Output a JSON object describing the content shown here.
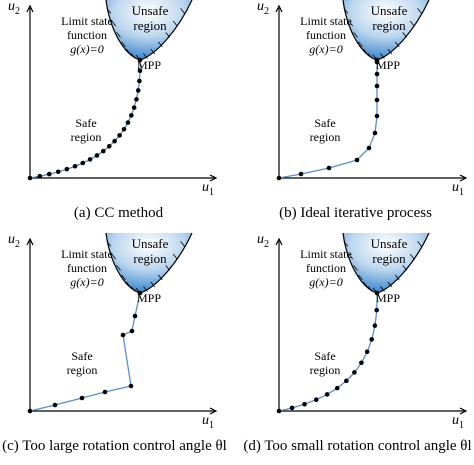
{
  "panels": [
    {
      "id": "a",
      "caption": "(a) CC method",
      "u2": "u",
      "u2_sub": "2",
      "u1": "u",
      "u1_sub": "1",
      "unsafe": [
        "Unsafe",
        "region"
      ],
      "limit": [
        "Limit state",
        "function",
        "g(x)=0"
      ],
      "mpp": "MPP",
      "safe": [
        "Safe",
        "region"
      ],
      "path_style": "curve",
      "points_count": 22
    },
    {
      "id": "b",
      "caption": "(b) Ideal iterative process",
      "u2": "u",
      "u2_sub": "2",
      "u1": "u",
      "u1_sub": "1",
      "unsafe": [
        "Unsafe",
        "region"
      ],
      "limit": [
        "Limit state",
        "function",
        "g(x)=0"
      ],
      "mpp": "MPP",
      "safe": [
        "Safe",
        "region"
      ],
      "path_style": "ideal",
      "points_count": 12
    },
    {
      "id": "c",
      "caption": "(c) Too large rotation control angle θl",
      "u2": "u",
      "u2_sub": "2",
      "u1": "u",
      "u1_sub": "1",
      "unsafe": [
        "Unsafe",
        "region"
      ],
      "limit": [
        "Limit state",
        "function",
        "g(x)=0"
      ],
      "mpp": "MPP",
      "safe": [
        "Safe",
        "region"
      ],
      "path_style": "zigzag",
      "points_count": 9
    },
    {
      "id": "d",
      "caption": "(d) Too small rotation control angle θl",
      "u2": "u",
      "u2_sub": "2",
      "u1": "u",
      "u1_sub": "1",
      "unsafe": [
        "Unsafe",
        "region"
      ],
      "limit": [
        "Limit state",
        "function",
        "g(x)=0"
      ],
      "mpp": "MPP",
      "safe": [
        "Safe",
        "region"
      ],
      "path_style": "small",
      "points_count": 14
    }
  ],
  "colors": {
    "path": "#5b8fc9",
    "region_fill": "#4a8fd1",
    "axis": "#000000",
    "point": "#000000"
  }
}
